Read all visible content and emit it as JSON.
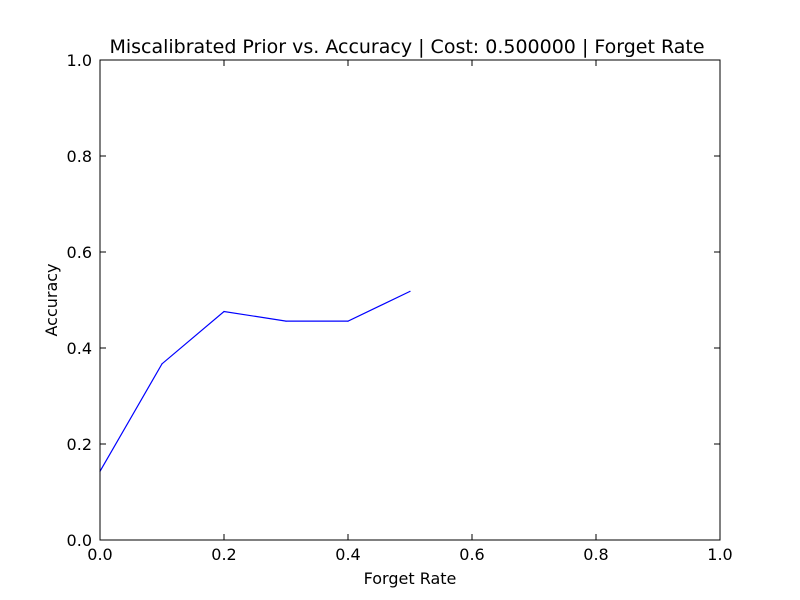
{
  "chart_data": {
    "type": "line",
    "title": "Miscalibrated Prior vs. Accuracy | Cost: 0.500000 | Forget Rate",
    "xlabel": "Forget Rate",
    "ylabel": "Accuracy",
    "xlim": [
      0.0,
      1.0
    ],
    "ylim": [
      0.0,
      1.0
    ],
    "x_ticks": [
      "0.0",
      "0.2",
      "0.4",
      "0.6",
      "0.8",
      "1.0"
    ],
    "y_ticks": [
      "0.0",
      "0.2",
      "0.4",
      "0.6",
      "0.8",
      "1.0"
    ],
    "grid": false,
    "legend": "none",
    "series": [
      {
        "color": "#0000ff",
        "x": [
          0.0,
          0.1,
          0.2,
          0.3,
          0.4,
          0.5
        ],
        "y": [
          0.143,
          0.367,
          0.476,
          0.456,
          0.456,
          0.518
        ]
      }
    ]
  }
}
